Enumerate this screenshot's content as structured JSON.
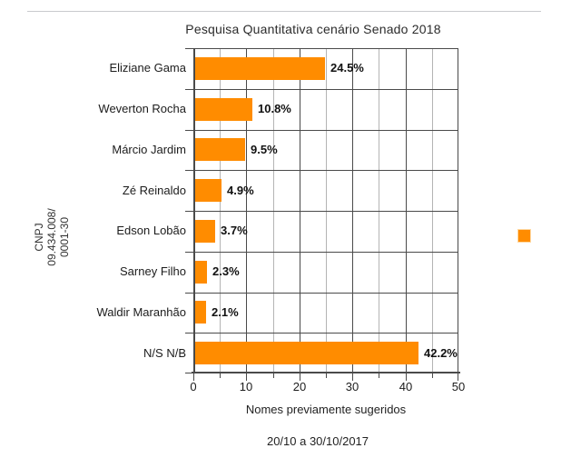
{
  "page": {
    "footer_date": "20/10 a 30/10/2017",
    "side_label": {
      "line1": "CNPJ",
      "line2": "09.434.008/",
      "line3": "0001-30"
    }
  },
  "colors": {
    "bar_orange": "#FF8C00",
    "grid_major": "#4a4a4a",
    "grid_minor": "#b4b4b4",
    "value_label": "#111111"
  },
  "chart_data": {
    "type": "bar",
    "orientation": "horizontal",
    "title": "Pesquisa Quantitativa cenário Senado 2018",
    "categories": [
      "Eliziane Gama",
      "Weverton Rocha",
      "Márcio Jardim",
      "Zé Reinaldo",
      "Edson Lobão",
      "Sarney Filho",
      "Waldir Maranhão",
      "N/S N/B"
    ],
    "values": [
      24.5,
      10.8,
      9.5,
      4.9,
      3.7,
      2.3,
      2.1,
      42.2
    ],
    "data_labels": [
      "24.5%",
      "10.8%",
      "9.5%",
      "4.9%",
      "3.7%",
      "2.3%",
      "2.1%",
      "42.2%"
    ],
    "xlabel": "Nomes previamente sugeridos",
    "ylabel": "",
    "xlim": [
      0,
      50
    ],
    "x_major_ticks": [
      0,
      10,
      20,
      30,
      40,
      50
    ],
    "x_major_tick_labels": [
      "0",
      "10",
      "20",
      "30",
      "40",
      "50"
    ],
    "x_minor_tick_step": 5,
    "grid": "major-and-minor-vertical, row-separator-horizontal",
    "legend_position": "right",
    "legend_label": "",
    "bar_color": "#FF8C00"
  }
}
